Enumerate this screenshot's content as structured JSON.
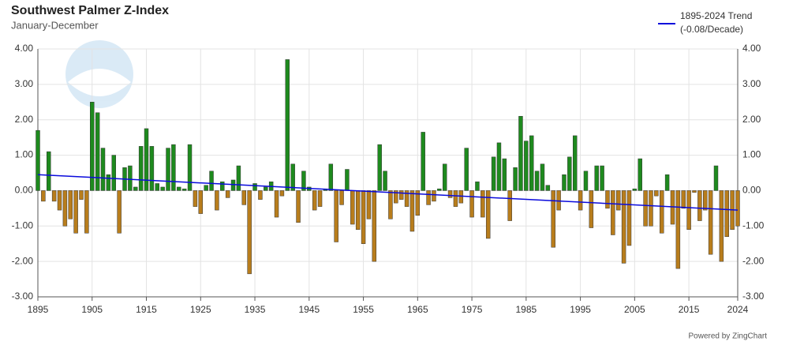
{
  "chart_data": {
    "type": "bar",
    "title": "Southwest Palmer Z-Index",
    "subtitle": "January-December",
    "positive_color": "#1e8a1e",
    "negative_color": "#b87d1c",
    "grid": true,
    "legend_position": "top-right",
    "credit": "Powered by ZingChart",
    "x": [
      1895,
      1896,
      1897,
      1898,
      1899,
      1900,
      1901,
      1902,
      1903,
      1904,
      1905,
      1906,
      1907,
      1908,
      1909,
      1910,
      1911,
      1912,
      1913,
      1914,
      1915,
      1916,
      1917,
      1918,
      1919,
      1920,
      1921,
      1922,
      1923,
      1924,
      1925,
      1926,
      1927,
      1928,
      1929,
      1930,
      1931,
      1932,
      1933,
      1934,
      1935,
      1936,
      1937,
      1938,
      1939,
      1940,
      1941,
      1942,
      1943,
      1944,
      1945,
      1946,
      1947,
      1948,
      1949,
      1950,
      1951,
      1952,
      1953,
      1954,
      1955,
      1956,
      1957,
      1958,
      1959,
      1960,
      1961,
      1962,
      1963,
      1964,
      1965,
      1966,
      1967,
      1968,
      1969,
      1970,
      1971,
      1972,
      1973,
      1974,
      1975,
      1976,
      1977,
      1978,
      1979,
      1980,
      1981,
      1982,
      1983,
      1984,
      1985,
      1986,
      1987,
      1988,
      1989,
      1990,
      1991,
      1992,
      1993,
      1994,
      1995,
      1996,
      1997,
      1998,
      1999,
      2000,
      2001,
      2002,
      2003,
      2004,
      2005,
      2006,
      2007,
      2008,
      2009,
      2010,
      2011,
      2012,
      2013,
      2014,
      2015,
      2016,
      2017,
      2018,
      2019,
      2020,
      2021,
      2022,
      2023,
      2024
    ],
    "series": [
      {
        "values": [
          1.7,
          -0.3,
          1.1,
          -0.3,
          -0.55,
          -1.0,
          -0.8,
          -1.2,
          -0.25,
          -1.2,
          2.5,
          2.2,
          1.2,
          0.45,
          1.0,
          -1.2,
          0.65,
          0.7,
          0.1,
          1.25,
          1.75,
          1.25,
          0.2,
          0.1,
          1.2,
          1.3,
          0.1,
          0.05,
          1.3,
          -0.45,
          -0.65,
          0.15,
          0.55,
          -0.55,
          0.25,
          -0.2,
          0.3,
          0.7,
          -0.4,
          -2.35,
          0.2,
          -0.25,
          0.1,
          0.25,
          -0.75,
          -0.15,
          3.7,
          0.75,
          -0.9,
          0.55,
          0.1,
          -0.55,
          -0.45,
          0.05,
          0.75,
          -1.45,
          -0.4,
          0.6,
          -0.95,
          -1.1,
          -1.5,
          -0.8,
          -2.0,
          1.3,
          0.55,
          -0.8,
          -0.35,
          -0.25,
          -0.45,
          -1.15,
          -0.7,
          1.65,
          -0.4,
          -0.3,
          0.05,
          0.75,
          -0.2,
          -0.45,
          -0.35,
          1.2,
          -0.75,
          0.25,
          -0.75,
          -1.35,
          0.95,
          1.35,
          0.9,
          -0.85,
          0.65,
          2.1,
          1.4,
          1.55,
          0.55,
          0.75,
          0.15,
          -1.6,
          -0.55,
          0.45,
          0.95,
          1.55,
          -0.55,
          0.55,
          -1.05,
          0.7,
          0.7,
          -0.5,
          -1.25,
          -0.55,
          -2.05,
          -1.55,
          0.05,
          0.9,
          -1.0,
          -1.0,
          -0.15,
          -1.2,
          0.45,
          -0.95,
          -2.2,
          -0.5,
          -1.1,
          -0.05,
          -0.85,
          -0.55,
          -1.8,
          0.7,
          -2.0,
          -1.3,
          -1.1,
          -1.0
        ]
      }
    ],
    "trend": {
      "name": "1895-2024 Trend",
      "rate": "(-0.08/Decade)",
      "color": "#0a0adc",
      "x": [
        1895,
        2024
      ],
      "values": [
        0.45,
        -0.55
      ]
    },
    "xlim": [
      1895,
      2024
    ],
    "xticks": [
      1895,
      1905,
      1915,
      1925,
      1935,
      1945,
      1955,
      1965,
      1975,
      1985,
      1995,
      2005,
      2015,
      2024
    ],
    "ylim": [
      -3,
      4
    ],
    "yticks": [
      {
        "value": -3,
        "label": "-3.00"
      },
      {
        "value": -2,
        "label": "-2.00"
      },
      {
        "value": -1,
        "label": "-1.00"
      },
      {
        "value": 0,
        "label": "0.00"
      },
      {
        "value": 1,
        "label": "1.00"
      },
      {
        "value": 2,
        "label": "2.00"
      },
      {
        "value": 3,
        "label": "3.00"
      },
      {
        "value": 4,
        "label": "4.00"
      }
    ]
  }
}
